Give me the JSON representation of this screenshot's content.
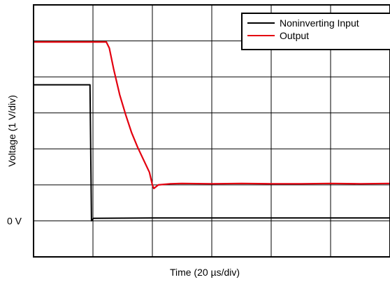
{
  "chart_data": {
    "type": "line",
    "xlabel": "Time (20 µs/div)",
    "ylabel": "Voltage (1 V/div)",
    "x_divisions": 6,
    "y_divisions": 7,
    "x_unit_per_div": 20,
    "y_unit_per_div": 1,
    "xlim": [
      0,
      120
    ],
    "ylim": [
      -1,
      6
    ],
    "yticks": [
      {
        "value": 0,
        "label": "0 V"
      }
    ],
    "grid": true,
    "legend_position": "top-right",
    "series": [
      {
        "name": "Noninverting Input",
        "color": "#000000",
        "points": [
          [
            0,
            3.78
          ],
          [
            19,
            3.78
          ],
          [
            19,
            3.7
          ],
          [
            19.5,
            0.0
          ],
          [
            20.2,
            0.07
          ],
          [
            40,
            0.08
          ],
          [
            80,
            0.08
          ],
          [
            120,
            0.08
          ]
        ]
      },
      {
        "name": "Output",
        "color": "#e3000f",
        "points": [
          [
            0,
            4.97
          ],
          [
            24.5,
            4.97
          ],
          [
            25.5,
            4.8
          ],
          [
            27,
            4.2
          ],
          [
            29,
            3.5
          ],
          [
            31,
            2.95
          ],
          [
            33,
            2.45
          ],
          [
            35,
            2.05
          ],
          [
            37,
            1.7
          ],
          [
            39,
            1.35
          ],
          [
            40,
            1.0
          ],
          [
            40.5,
            0.9
          ],
          [
            42,
            1.0
          ],
          [
            46,
            1.03
          ],
          [
            50,
            1.04
          ],
          [
            60,
            1.03
          ],
          [
            70,
            1.04
          ],
          [
            80,
            1.03
          ],
          [
            90,
            1.03
          ],
          [
            100,
            1.04
          ],
          [
            110,
            1.03
          ],
          [
            120,
            1.04
          ]
        ]
      }
    ]
  }
}
